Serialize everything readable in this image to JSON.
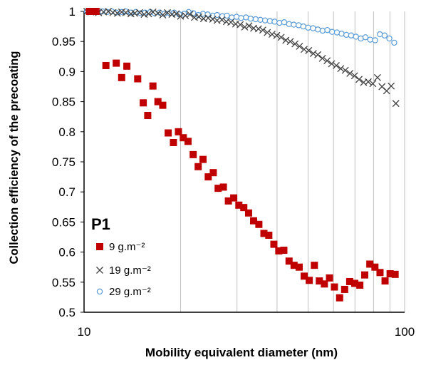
{
  "chart_data": {
    "type": "scatter",
    "xscale": "log",
    "xlim": [
      10,
      100
    ],
    "ylim": [
      0.5,
      1
    ],
    "xlabel": "Mobility equivalent diameter (nm)",
    "ylabel": "Collection efficiency of the precoating",
    "x_ticks": [
      "10",
      "100"
    ],
    "y_ticks": [
      "0.5",
      "0.55",
      "0.6",
      "0.65",
      "0.7",
      "0.75",
      "0.8",
      "0.85",
      "0.9",
      "0.95",
      "1"
    ],
    "grid": {
      "vertical": true,
      "horizontal": false
    },
    "annotation": "P1",
    "legend_position": "bottom-left",
    "series": [
      {
        "name": "9 g.m⁻²",
        "marker": "square",
        "color": "#c00000",
        "x": [
          10.4,
          10.9,
          11.7,
          12.6,
          13.1,
          13.6,
          14.7,
          15.3,
          15.8,
          16.4,
          17.0,
          17.6,
          18.3,
          19.0,
          19.7,
          20.4,
          21.1,
          21.9,
          22.7,
          23.5,
          24.4,
          25.3,
          26.2,
          27.2,
          28.2,
          29.3,
          30.4,
          31.5,
          32.6,
          33.8,
          35.1,
          36.4,
          37.7,
          39.1,
          40.5,
          42.0,
          43.6,
          45.2,
          46.9,
          48.6,
          50.4,
          52.3,
          54.2,
          56.2,
          58.3,
          60.4,
          62.7,
          65.0,
          67.4,
          69.9,
          72.5,
          75.1,
          77.9,
          80.8,
          83.8,
          86.9,
          90.1,
          93.4
        ],
        "y": [
          1.0,
          1.0,
          0.91,
          0.914,
          0.89,
          0.909,
          0.888,
          0.848,
          0.827,
          0.876,
          0.85,
          0.844,
          0.798,
          0.782,
          0.8,
          0.79,
          0.784,
          0.762,
          0.742,
          0.754,
          0.725,
          0.732,
          0.706,
          0.708,
          0.685,
          0.69,
          0.678,
          0.674,
          0.665,
          0.652,
          0.646,
          0.631,
          0.628,
          0.613,
          0.602,
          0.603,
          0.585,
          0.578,
          0.575,
          0.56,
          0.553,
          0.578,
          0.552,
          0.547,
          0.557,
          0.542,
          0.524,
          0.538,
          0.551,
          0.548,
          0.545,
          0.562,
          0.58,
          0.575,
          0.566,
          0.552,
          0.564,
          0.563
        ]
      },
      {
        "name": "19 g.m⁻²",
        "marker": "x",
        "color": "#404040",
        "x": [
          10.2,
          10.5,
          10.8,
          11.1,
          11.5,
          11.9,
          12.3,
          12.7,
          13.1,
          13.5,
          14.0,
          14.4,
          14.9,
          15.4,
          15.9,
          16.4,
          17.0,
          17.6,
          18.2,
          18.8,
          19.4,
          20.0,
          20.7,
          21.4,
          22.1,
          22.8,
          23.6,
          24.4,
          25.2,
          26.0,
          26.9,
          27.8,
          28.7,
          29.7,
          30.7,
          31.7,
          32.7,
          33.8,
          35.0,
          36.1,
          37.3,
          38.6,
          39.9,
          41.2,
          42.6,
          44.0,
          45.5,
          47.0,
          48.6,
          50.2,
          51.9,
          53.6,
          55.4,
          57.3,
          59.2,
          61.2,
          63.2,
          65.3,
          67.5,
          69.8,
          72.1,
          74.5,
          77.0,
          79.6,
          82.3,
          85.0,
          87.9,
          90.8,
          93.9
        ],
        "y": [
          1.0,
          0.999,
          1.0,
          0.998,
          0.999,
          1.0,
          0.998,
          0.997,
          0.999,
          0.998,
          0.996,
          0.997,
          0.998,
          0.995,
          0.996,
          0.999,
          0.997,
          0.994,
          0.998,
          0.995,
          0.996,
          0.992,
          0.993,
          0.995,
          0.99,
          0.991,
          0.988,
          0.989,
          0.987,
          0.985,
          0.986,
          0.983,
          0.982,
          0.979,
          0.978,
          0.974,
          0.976,
          0.972,
          0.971,
          0.969,
          0.965,
          0.962,
          0.96,
          0.957,
          0.952,
          0.95,
          0.946,
          0.942,
          0.937,
          0.935,
          0.93,
          0.928,
          0.922,
          0.918,
          0.913,
          0.91,
          0.905,
          0.902,
          0.897,
          0.893,
          0.887,
          0.882,
          0.883,
          0.88,
          0.89,
          0.875,
          0.868,
          0.876,
          0.847
        ]
      },
      {
        "name": "29 g.m⁻²",
        "marker": "circle",
        "color": "#5b9bd5",
        "x": [
          10.2,
          10.6,
          11.0,
          11.4,
          11.8,
          12.2,
          12.6,
          13.1,
          13.5,
          14.0,
          14.5,
          15.0,
          15.5,
          16.1,
          16.6,
          17.2,
          17.8,
          18.5,
          19.1,
          19.8,
          20.5,
          21.2,
          21.9,
          22.7,
          23.5,
          24.3,
          25.2,
          26.0,
          27.0,
          27.9,
          28.9,
          29.9,
          30.9,
          32.0,
          33.1,
          34.3,
          35.5,
          36.7,
          38.0,
          39.3,
          40.7,
          42.1,
          43.6,
          45.1,
          46.7,
          48.3,
          50.0,
          51.8,
          53.6,
          55.5,
          57.4,
          59.4,
          61.5,
          63.6,
          65.8,
          68.1,
          70.5,
          73.0,
          75.5,
          78.1,
          80.9,
          83.7,
          86.6,
          89.6,
          92.8
        ],
        "y": [
          1.0,
          1.0,
          0.999,
          1.0,
          0.999,
          1.0,
          0.998,
          0.999,
          1.0,
          0.998,
          0.999,
          0.997,
          0.998,
          0.999,
          0.997,
          0.998,
          0.996,
          0.997,
          0.998,
          0.995,
          0.996,
          0.999,
          0.997,
          0.994,
          0.996,
          0.995,
          0.993,
          0.994,
          0.992,
          0.993,
          0.99,
          0.991,
          0.989,
          0.99,
          0.988,
          0.987,
          0.986,
          0.985,
          0.984,
          0.983,
          0.981,
          0.982,
          0.979,
          0.978,
          0.977,
          0.975,
          0.973,
          0.972,
          0.97,
          0.968,
          0.969,
          0.966,
          0.965,
          0.963,
          0.961,
          0.96,
          0.958,
          0.955,
          0.957,
          0.953,
          0.952,
          0.962,
          0.96,
          0.955,
          0.948
        ]
      }
    ]
  }
}
